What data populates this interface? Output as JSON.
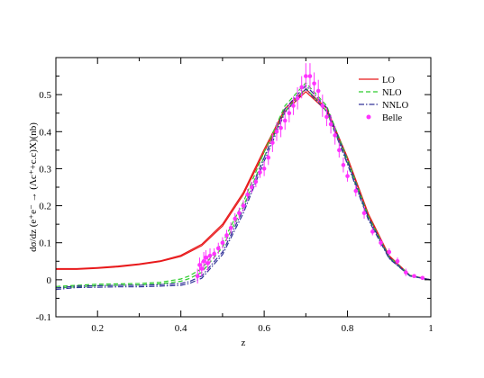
{
  "chart_data": {
    "type": "line",
    "title": "",
    "xlabel": "z",
    "ylabel": "dσ/dz (e⁺e⁻ → (Λc⁺+c.c)X)(nb)",
    "xlim": [
      0.1,
      1.0
    ],
    "ylim": [
      -0.1,
      0.6
    ],
    "x_ticks": [
      0.2,
      0.4,
      0.6,
      0.8,
      1.0
    ],
    "x_tick_labels": [
      "0.2",
      "0.4",
      "0.6",
      "0.8",
      "1"
    ],
    "y_ticks": [
      -0.1,
      0.0,
      0.1,
      0.2,
      0.3,
      0.4,
      0.5
    ],
    "y_tick_labels": [
      "-0.1",
      "0",
      "0.1",
      "0.2",
      "0.3",
      "0.4",
      "0.5"
    ],
    "grid": false,
    "legend_position": "top-right",
    "series": [
      {
        "name": "LO",
        "color": "#e8191b",
        "style": "solid",
        "x": [
          0.1,
          0.15,
          0.2,
          0.25,
          0.3,
          0.35,
          0.4,
          0.45,
          0.5,
          0.55,
          0.6,
          0.65,
          0.7,
          0.75,
          0.8,
          0.85,
          0.9,
          0.95,
          1.0
        ],
        "upper": [
          0.03,
          0.03,
          0.033,
          0.037,
          0.043,
          0.051,
          0.066,
          0.096,
          0.15,
          0.236,
          0.352,
          0.462,
          0.515,
          0.463,
          0.33,
          0.178,
          0.065,
          0.012,
          0.0
        ],
        "lower": [
          0.028,
          0.028,
          0.031,
          0.035,
          0.041,
          0.049,
          0.063,
          0.092,
          0.145,
          0.23,
          0.345,
          0.455,
          0.508,
          0.456,
          0.325,
          0.174,
          0.062,
          0.011,
          0.0
        ]
      },
      {
        "name": "NLO",
        "color": "#2fcc2f",
        "style": "dashed",
        "x": [
          0.1,
          0.15,
          0.2,
          0.25,
          0.3,
          0.35,
          0.4,
          0.42,
          0.45,
          0.5,
          0.55,
          0.6,
          0.65,
          0.7,
          0.75,
          0.8,
          0.85,
          0.9,
          0.95,
          1.0
        ],
        "upper": [
          -0.018,
          -0.015,
          -0.012,
          -0.011,
          -0.01,
          -0.007,
          0.002,
          0.01,
          0.03,
          0.1,
          0.21,
          0.345,
          0.47,
          0.532,
          0.47,
          0.325,
          0.172,
          0.062,
          0.012,
          0.0
        ],
        "lower": [
          -0.022,
          -0.019,
          -0.016,
          -0.015,
          -0.014,
          -0.011,
          -0.004,
          0.003,
          0.02,
          0.088,
          0.198,
          0.332,
          0.455,
          0.518,
          0.455,
          0.315,
          0.165,
          0.058,
          0.01,
          0.0
        ]
      },
      {
        "name": "NNLO",
        "color": "#333399",
        "style": "dash-dot",
        "x": [
          0.1,
          0.15,
          0.2,
          0.25,
          0.3,
          0.35,
          0.4,
          0.42,
          0.45,
          0.5,
          0.55,
          0.6,
          0.65,
          0.7,
          0.75,
          0.8,
          0.85,
          0.9,
          0.95,
          1.0
        ],
        "upper": [
          -0.022,
          -0.017,
          -0.016,
          -0.015,
          -0.015,
          -0.013,
          -0.01,
          -0.005,
          0.01,
          0.075,
          0.19,
          0.33,
          0.462,
          0.525,
          0.465,
          0.32,
          0.168,
          0.06,
          0.011,
          0.0
        ],
        "lower": [
          -0.026,
          -0.021,
          -0.02,
          -0.019,
          -0.019,
          -0.017,
          -0.015,
          -0.01,
          0.004,
          0.068,
          0.18,
          0.32,
          0.452,
          0.515,
          0.455,
          0.312,
          0.162,
          0.057,
          0.01,
          0.0
        ]
      }
    ],
    "points": {
      "name": "Belle",
      "color": "#ff33ff",
      "x": [
        0.44,
        0.445,
        0.45,
        0.455,
        0.46,
        0.465,
        0.47,
        0.48,
        0.49,
        0.5,
        0.51,
        0.52,
        0.53,
        0.54,
        0.55,
        0.56,
        0.57,
        0.58,
        0.59,
        0.6,
        0.61,
        0.62,
        0.63,
        0.64,
        0.65,
        0.66,
        0.67,
        0.68,
        0.69,
        0.7,
        0.71,
        0.72,
        0.73,
        0.74,
        0.75,
        0.76,
        0.77,
        0.78,
        0.79,
        0.8,
        0.82,
        0.84,
        0.86,
        0.88,
        0.9,
        0.92,
        0.94,
        0.96,
        0.98
      ],
      "y": [
        0.01,
        0.04,
        0.03,
        0.05,
        0.06,
        0.045,
        0.065,
        0.07,
        0.085,
        0.1,
        0.12,
        0.14,
        0.165,
        0.18,
        0.2,
        0.23,
        0.25,
        0.265,
        0.29,
        0.3,
        0.33,
        0.37,
        0.4,
        0.41,
        0.43,
        0.45,
        0.47,
        0.49,
        0.52,
        0.55,
        0.55,
        0.53,
        0.51,
        0.47,
        0.44,
        0.42,
        0.39,
        0.35,
        0.31,
        0.28,
        0.24,
        0.18,
        0.13,
        0.1,
        0.075,
        0.05,
        0.02,
        0.01,
        0.005
      ],
      "err": [
        0.02,
        0.02,
        0.02,
        0.025,
        0.02,
        0.02,
        0.02,
        0.015,
        0.015,
        0.015,
        0.015,
        0.015,
        0.015,
        0.015,
        0.015,
        0.015,
        0.015,
        0.015,
        0.015,
        0.02,
        0.02,
        0.025,
        0.025,
        0.025,
        0.025,
        0.025,
        0.025,
        0.03,
        0.03,
        0.035,
        0.035,
        0.03,
        0.03,
        0.03,
        0.025,
        0.025,
        0.025,
        0.02,
        0.02,
        0.015,
        0.015,
        0.015,
        0.01,
        0.01,
        0.01,
        0.01,
        0.01,
        0.005,
        0.005
      ]
    }
  }
}
